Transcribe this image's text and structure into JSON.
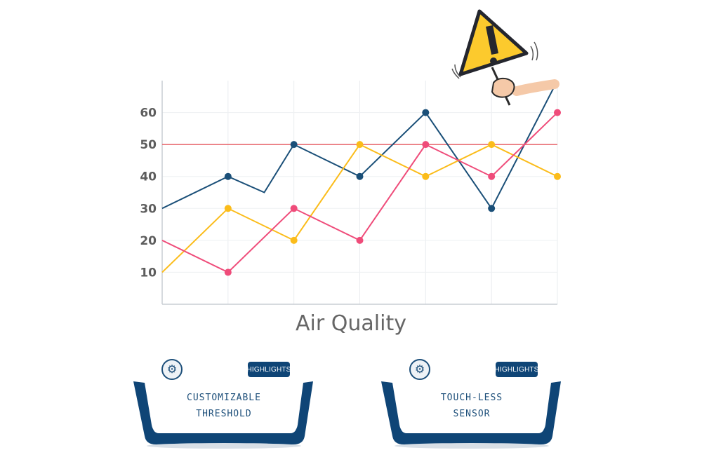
{
  "chart_data": {
    "type": "line",
    "title": "Air Quality",
    "yticks": [
      10,
      20,
      30,
      40,
      50,
      60
    ],
    "ylim": [
      0,
      70
    ],
    "x": [
      0,
      1,
      2,
      3,
      4,
      5,
      6
    ],
    "threshold": 50,
    "threshold_color": "#e8636a",
    "grid": true,
    "series": [
      {
        "color": "#1a4f78",
        "points": [
          [
            0,
            30
          ],
          [
            1,
            40
          ],
          [
            1.55,
            35
          ],
          [
            2,
            50
          ],
          [
            3,
            40
          ],
          [
            4,
            60
          ],
          [
            5,
            30
          ],
          [
            6,
            71
          ]
        ]
      },
      {
        "color": "#fbbc1a",
        "points": [
          [
            0,
            10
          ],
          [
            1,
            30
          ],
          [
            2,
            20
          ],
          [
            3,
            50
          ],
          [
            4,
            40
          ],
          [
            5,
            50
          ],
          [
            6,
            40
          ]
        ]
      },
      {
        "color": "#ef4c7a",
        "points": [
          [
            0,
            20
          ],
          [
            1,
            10
          ],
          [
            2,
            30
          ],
          [
            3,
            20
          ],
          [
            4,
            50
          ],
          [
            5,
            40
          ],
          [
            6,
            60
          ]
        ]
      }
    ],
    "markers": [
      {
        "series": 0,
        "x": [
          1,
          2,
          3,
          4,
          5
        ]
      },
      {
        "series": 1,
        "x": [
          1,
          2,
          3,
          4,
          5,
          6
        ]
      },
      {
        "series": 2,
        "x": [
          1,
          2,
          3,
          4,
          5,
          6
        ]
      }
    ]
  },
  "warning_sign": {
    "icon": "warning-sign-icon",
    "color": "#fcca2d",
    "glyph": "!"
  },
  "cards": [
    {
      "badge": "HIGHLIGHTS",
      "line1": "CUSTOMIZABLE",
      "line2": "THRESHOLD",
      "icon": "gear-icon"
    },
    {
      "badge": "HIGHLIGHTS",
      "line1": "TOUCH-LESS",
      "line2": "SENSOR",
      "icon": "gear-icon"
    }
  ],
  "colors": {
    "card_navy": "#0f4576"
  }
}
